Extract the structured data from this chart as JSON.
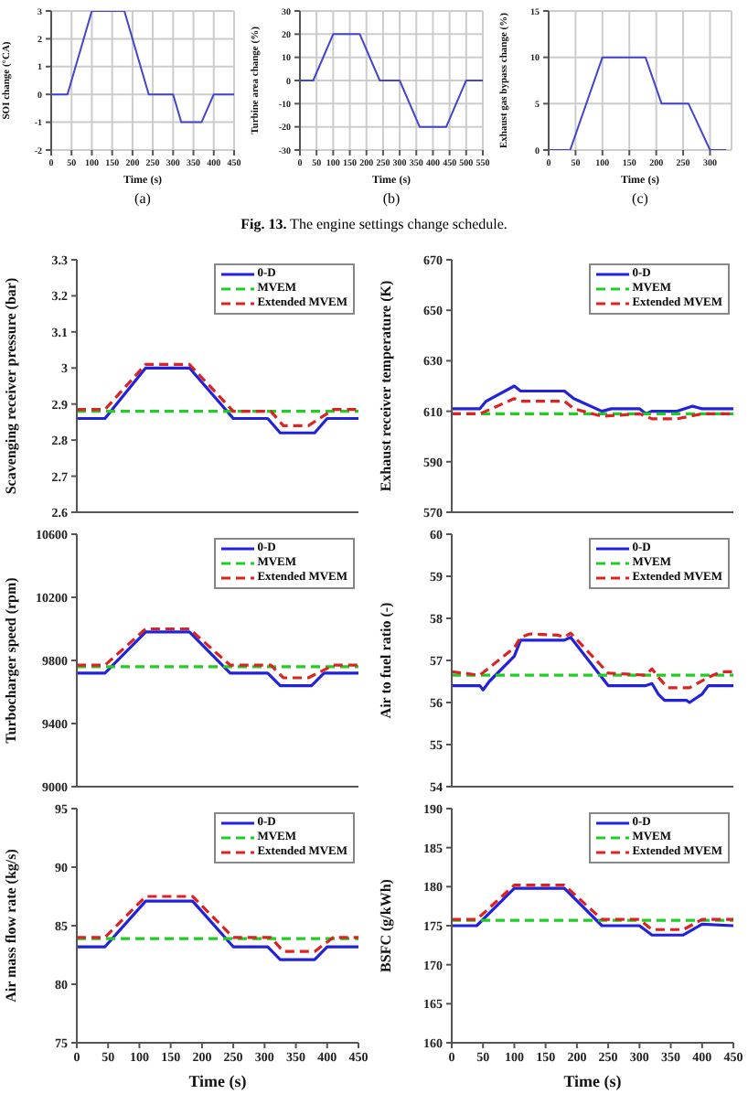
{
  "chart_data": [
    {
      "type": "line",
      "xlabel": "Time (s)",
      "ylabel": "SOI change (°CA)",
      "xlim": [
        0,
        450
      ],
      "xticks": [
        0,
        50,
        100,
        150,
        200,
        250,
        300,
        350,
        400,
        450
      ],
      "ylim": [
        -2,
        3
      ],
      "yticks": [
        -2,
        -1,
        0,
        1,
        2,
        3
      ],
      "grid": true,
      "annotations": [
        "(a)"
      ],
      "series": [
        {
          "color": "#4444cc",
          "line_style": "solid",
          "x": [
            0,
            40,
            100,
            180,
            240,
            300,
            320,
            370,
            400,
            450
          ],
          "values": [
            0,
            0,
            3,
            3,
            0,
            0,
            -1,
            -1,
            0,
            0
          ]
        }
      ]
    },
    {
      "type": "line",
      "xlabel": "Time (s)",
      "ylabel": "Turbine area change (%)",
      "xlim": [
        0,
        550
      ],
      "xticks": [
        0,
        50,
        100,
        150,
        200,
        250,
        300,
        350,
        400,
        450,
        500,
        550
      ],
      "ylim": [
        -30,
        30
      ],
      "yticks": [
        -30,
        -20,
        -10,
        0,
        10,
        20,
        30
      ],
      "grid": true,
      "annotations": [
        "(b)",
        "Fig. 13. The engine settings change schedule."
      ],
      "series": [
        {
          "color": "#4444cc",
          "line_style": "solid",
          "x": [
            0,
            40,
            100,
            180,
            240,
            300,
            360,
            440,
            500,
            550
          ],
          "values": [
            0,
            0,
            20,
            20,
            0,
            0,
            -20,
            -20,
            0,
            0
          ]
        }
      ]
    },
    {
      "type": "line",
      "xlabel": "Time (s)",
      "ylabel": "Exhaust gas bypass change (%)",
      "xlim": [
        0,
        340
      ],
      "xticks": [
        0,
        50,
        100,
        150,
        200,
        250,
        300
      ],
      "ylim": [
        0,
        15
      ],
      "yticks": [
        0,
        5,
        10,
        15
      ],
      "grid": true,
      "annotations": [
        "(c)"
      ],
      "series": [
        {
          "color": "#4444cc",
          "line_style": "solid",
          "x": [
            0,
            40,
            100,
            180,
            210,
            260,
            300,
            330
          ],
          "values": [
            0,
            0,
            10,
            10,
            5,
            5,
            0,
            0
          ]
        }
      ]
    },
    {
      "type": "line",
      "ylabel": "Scavenging receiver pressure (bar)",
      "xlim": [
        0,
        450
      ],
      "xticks": [
        0,
        50,
        100,
        150,
        200,
        250,
        300,
        350,
        400,
        450
      ],
      "ylim": [
        2.6,
        3.3
      ],
      "yticks": [
        2.6,
        2.7,
        2.8,
        2.9,
        3,
        3.1,
        3.2,
        3.3
      ],
      "tick_labels": "y",
      "legend": "top right",
      "series": [
        {
          "name": "0-D",
          "color": "#2222dd",
          "line_style": "solid",
          "x": [
            0,
            45,
            110,
            180,
            250,
            305,
            325,
            380,
            400,
            450
          ],
          "values": [
            2.86,
            2.86,
            3.0,
            3.0,
            2.86,
            2.86,
            2.82,
            2.82,
            2.86,
            2.86
          ]
        },
        {
          "name": "MVEM",
          "color": "#22cc22",
          "line_style": "dashed",
          "x": [
            0,
            450
          ],
          "values": [
            2.88,
            2.88
          ]
        },
        {
          "name": "Extended MVEM",
          "color": "#dd2222",
          "line_style": "dashed",
          "x": [
            0,
            45,
            110,
            180,
            250,
            310,
            330,
            370,
            410,
            450
          ],
          "values": [
            2.885,
            2.885,
            3.01,
            3.01,
            2.88,
            2.88,
            2.84,
            2.84,
            2.885,
            2.885
          ]
        }
      ]
    },
    {
      "type": "line",
      "ylabel": "Exhaust receiver temperature (K)",
      "xlim": [
        0,
        450
      ],
      "xticks": [
        0,
        50,
        100,
        150,
        200,
        250,
        300,
        350,
        400,
        450
      ],
      "ylim": [
        570,
        670
      ],
      "yticks": [
        570,
        590,
        610,
        630,
        650,
        670
      ],
      "tick_labels": "y",
      "legend": "top right",
      "series": [
        {
          "name": "0-D",
          "color": "#2222dd",
          "line_style": "solid",
          "x": [
            0,
            45,
            55,
            100,
            110,
            180,
            195,
            240,
            255,
            300,
            310,
            320,
            360,
            385,
            400,
            450
          ],
          "values": [
            611,
            611,
            614,
            620,
            618,
            618,
            615,
            610,
            611,
            611,
            609,
            610,
            610,
            612,
            611,
            611
          ]
        },
        {
          "name": "MVEM",
          "color": "#22cc22",
          "line_style": "dashed",
          "x": [
            0,
            450
          ],
          "values": [
            609,
            609
          ]
        },
        {
          "name": "Extended MVEM",
          "color": "#dd2222",
          "line_style": "dashed",
          "x": [
            0,
            45,
            100,
            110,
            180,
            195,
            240,
            300,
            320,
            360,
            400,
            450
          ],
          "values": [
            609,
            609,
            615,
            614,
            614,
            611,
            608,
            609,
            607,
            607,
            609,
            609
          ]
        }
      ]
    },
    {
      "type": "line",
      "ylabel": "Turbocharger speed (rpm)",
      "xlim": [
        0,
        450
      ],
      "xticks": [
        0,
        50,
        100,
        150,
        200,
        250,
        300,
        350,
        400,
        450
      ],
      "ylim": [
        9000,
        10600
      ],
      "yticks": [
        9000,
        9400,
        9800,
        10200,
        10600
      ],
      "tick_labels": "y",
      "legend": "top right",
      "series": [
        {
          "name": "0-D",
          "color": "#2222dd",
          "line_style": "solid",
          "x": [
            0,
            45,
            110,
            180,
            245,
            305,
            325,
            375,
            395,
            450
          ],
          "values": [
            9720,
            9720,
            9980,
            9980,
            9720,
            9720,
            9640,
            9640,
            9720,
            9720
          ]
        },
        {
          "name": "MVEM",
          "color": "#22cc22",
          "line_style": "dashed",
          "x": [
            0,
            450
          ],
          "values": [
            9760,
            9760
          ]
        },
        {
          "name": "Extended MVEM",
          "color": "#dd2222",
          "line_style": "dashed",
          "x": [
            0,
            45,
            110,
            180,
            245,
            310,
            330,
            370,
            410,
            450
          ],
          "values": [
            9770,
            9770,
            10000,
            10000,
            9770,
            9770,
            9690,
            9690,
            9770,
            9770
          ]
        }
      ]
    },
    {
      "type": "line",
      "ylabel": "Air to fuel ratio (-)",
      "xlim": [
        0,
        450
      ],
      "xticks": [
        0,
        50,
        100,
        150,
        200,
        250,
        300,
        350,
        400,
        450
      ],
      "ylim": [
        54,
        60
      ],
      "yticks": [
        54,
        55,
        56,
        57,
        58,
        59,
        60
      ],
      "tick_labels": "y",
      "legend": "top right",
      "series": [
        {
          "name": "0-D",
          "color": "#2222dd",
          "line_style": "solid",
          "x": [
            0,
            45,
            50,
            60,
            100,
            110,
            180,
            190,
            250,
            310,
            320,
            330,
            340,
            375,
            380,
            400,
            410,
            450
          ],
          "values": [
            56.4,
            56.4,
            56.3,
            56.5,
            57.1,
            57.48,
            57.48,
            57.55,
            56.4,
            56.4,
            56.45,
            56.2,
            56.05,
            56.05,
            56.0,
            56.2,
            56.4,
            56.4
          ]
        },
        {
          "name": "MVEM",
          "color": "#22cc22",
          "line_style": "dashed",
          "x": [
            0,
            450
          ],
          "values": [
            56.65,
            56.65
          ]
        },
        {
          "name": "Extended MVEM",
          "color": "#dd2222",
          "line_style": "dashed",
          "x": [
            0,
            45,
            100,
            110,
            125,
            170,
            180,
            190,
            250,
            310,
            320,
            330,
            345,
            380,
            410,
            430,
            450
          ],
          "values": [
            56.73,
            56.65,
            57.3,
            57.55,
            57.63,
            57.6,
            57.55,
            57.65,
            56.7,
            56.65,
            56.8,
            56.6,
            56.35,
            56.35,
            56.6,
            56.73,
            56.73
          ]
        }
      ]
    },
    {
      "type": "line",
      "xlabel": "Time (s)",
      "ylabel": "Air mass flow rate (kg/s)",
      "xlim": [
        0,
        450
      ],
      "xticks": [
        0,
        50,
        100,
        150,
        200,
        250,
        300,
        350,
        400,
        450
      ],
      "ylim": [
        75,
        95
      ],
      "yticks": [
        75,
        80,
        85,
        90,
        95
      ],
      "legend": "top right",
      "series": [
        {
          "name": "0-D",
          "color": "#2222dd",
          "line_style": "solid",
          "x": [
            0,
            45,
            110,
            185,
            250,
            305,
            325,
            380,
            400,
            450
          ],
          "values": [
            83.2,
            83.2,
            87.1,
            87.1,
            83.2,
            83.2,
            82.1,
            82.1,
            83.2,
            83.2
          ]
        },
        {
          "name": "MVEM",
          "color": "#22cc22",
          "line_style": "dashed",
          "x": [
            0,
            450
          ],
          "values": [
            83.9,
            83.9
          ]
        },
        {
          "name": "Extended MVEM",
          "color": "#dd2222",
          "line_style": "dashed",
          "x": [
            0,
            45,
            110,
            185,
            250,
            310,
            330,
            380,
            410,
            450
          ],
          "values": [
            84.0,
            84.0,
            87.5,
            87.5,
            84.0,
            84.0,
            82.8,
            82.8,
            84.0,
            84.0
          ]
        }
      ]
    },
    {
      "type": "line",
      "xlabel": "Time (s)",
      "ylabel": "BSFC (g/kWh)",
      "xlim": [
        0,
        450
      ],
      "xticks": [
        0,
        50,
        100,
        150,
        200,
        250,
        300,
        350,
        400,
        450
      ],
      "ylim": [
        160,
        190
      ],
      "yticks": [
        160,
        165,
        170,
        175,
        180,
        185,
        190
      ],
      "legend": "top right",
      "series": [
        {
          "name": "0-D",
          "color": "#2222dd",
          "line_style": "solid",
          "x": [
            0,
            40,
            100,
            180,
            240,
            300,
            320,
            370,
            400,
            450
          ],
          "values": [
            175,
            175,
            179.8,
            179.8,
            175,
            175,
            173.8,
            173.8,
            175.2,
            175
          ]
        },
        {
          "name": "MVEM",
          "color": "#22cc22",
          "line_style": "dashed",
          "x": [
            0,
            450
          ],
          "values": [
            175.7,
            175.7
          ]
        },
        {
          "name": "Extended MVEM",
          "color": "#dd2222",
          "line_style": "dashed",
          "x": [
            0,
            40,
            100,
            180,
            240,
            300,
            320,
            370,
            400,
            450
          ],
          "values": [
            175.8,
            175.8,
            180.2,
            180.2,
            175.8,
            175.8,
            174.5,
            174.5,
            175.8,
            175.8
          ]
        }
      ]
    }
  ]
}
